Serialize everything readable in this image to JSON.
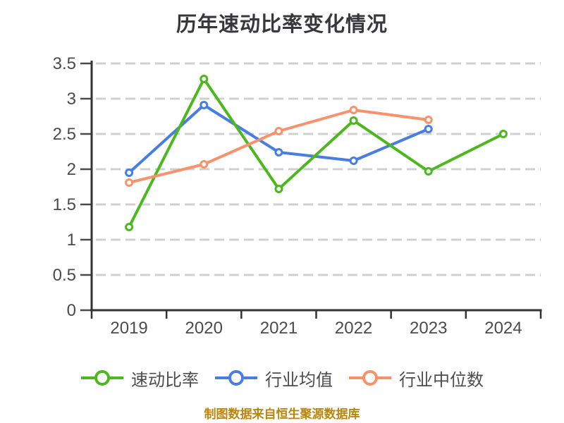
{
  "title": "历年速动比率变化情况",
  "footer": "制图数据来自恒生聚源数据库",
  "colors": {
    "background": "#ffffff",
    "title_text": "#38383c",
    "axis_line": "#333333",
    "tick_line": "#4a4a4a",
    "grid_line": "#d0d0d0",
    "tick_label": "#4b4b4b",
    "legend_text": "#4d4d4d",
    "footer_text": "#b8860b",
    "marker_fill": "#ffffff"
  },
  "chart_data": {
    "type": "line",
    "title": "历年速动比率变化情况",
    "categories": [
      "2019",
      "2020",
      "2021",
      "2022",
      "2023",
      "2024"
    ],
    "series": [
      {
        "name": "速动比率",
        "slug": "quick-ratio",
        "color": "#4db71e",
        "values": [
          1.18,
          3.28,
          1.72,
          2.69,
          1.97,
          2.5
        ]
      },
      {
        "name": "行业均值",
        "slug": "industry-average",
        "color": "#4a7de0",
        "values": [
          1.95,
          2.91,
          2.24,
          2.12,
          2.57,
          null
        ]
      },
      {
        "name": "行业中位数",
        "slug": "industry-median",
        "color": "#f8926b",
        "values": [
          1.81,
          2.07,
          2.54,
          2.84,
          2.7,
          null
        ]
      }
    ],
    "draw_order": [
      1,
      0,
      2
    ],
    "xlabel": "",
    "ylabel": "",
    "ylim": [
      0,
      3.5
    ],
    "yticks": [
      0,
      0.5,
      1,
      1.5,
      2,
      2.5,
      3,
      3.5
    ],
    "ytick_labels": [
      "0",
      "0.5",
      "1",
      "1.5",
      "2",
      "2.5",
      "3",
      "3.5"
    ],
    "grid": "horizontal-dashed",
    "legend_position": "bottom",
    "marker": "hollow-circle"
  }
}
